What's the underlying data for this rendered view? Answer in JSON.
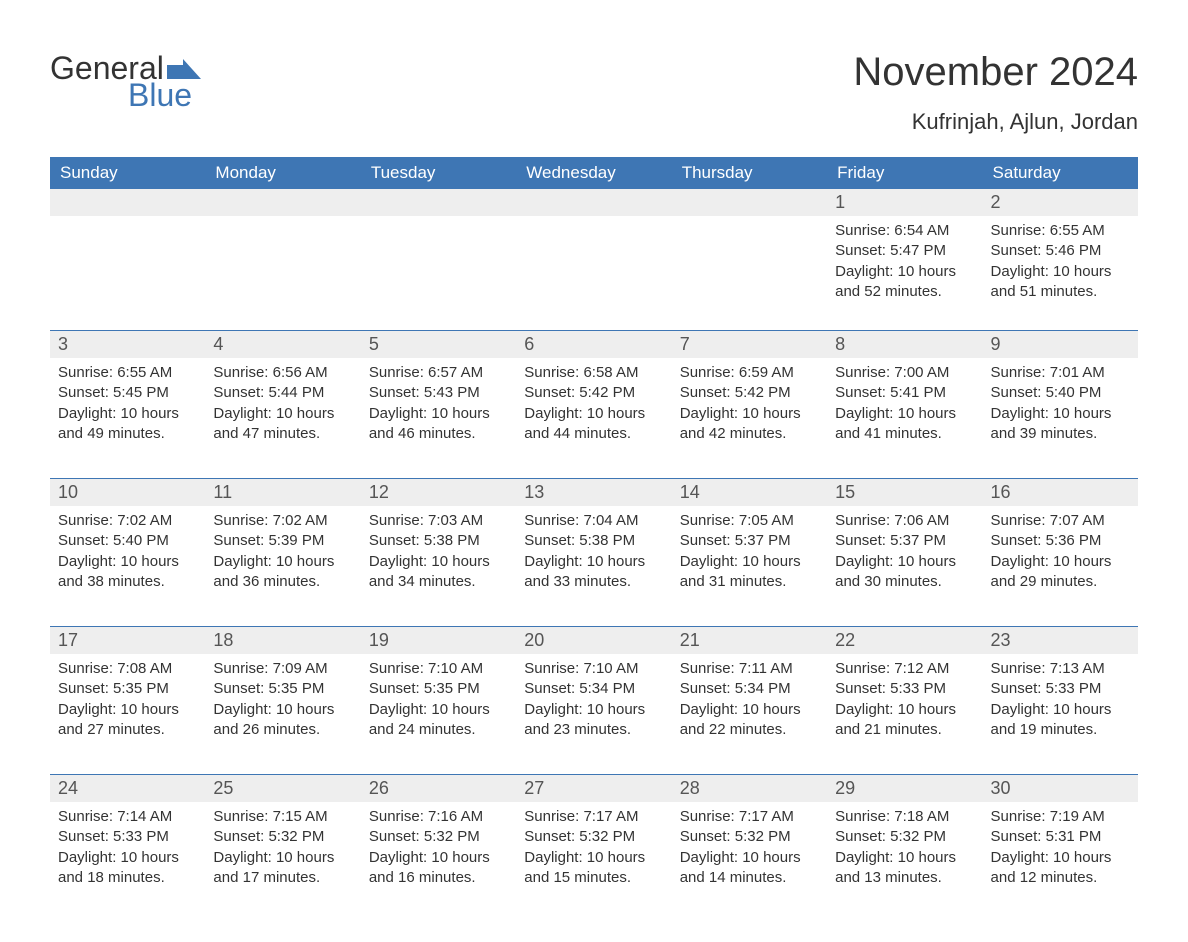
{
  "brand": {
    "word1": "General",
    "word2": "Blue"
  },
  "title": "November 2024",
  "location": "Kufrinjah, Ajlun, Jordan",
  "colors": {
    "header_bg": "#3e76b4",
    "header_text": "#ffffff",
    "daynum_bg": "#eeeeee",
    "text": "#333333",
    "brand_blue": "#3e76b4"
  },
  "weekdays": [
    "Sunday",
    "Monday",
    "Tuesday",
    "Wednesday",
    "Thursday",
    "Friday",
    "Saturday"
  ],
  "labels": {
    "sunrise": "Sunrise:",
    "sunset": "Sunset:",
    "daylight": "Daylight:"
  },
  "weeks": [
    [
      null,
      null,
      null,
      null,
      null,
      {
        "n": "1",
        "sunrise": "6:54 AM",
        "sunset": "5:47 PM",
        "daylight": "10 hours and 52 minutes."
      },
      {
        "n": "2",
        "sunrise": "6:55 AM",
        "sunset": "5:46 PM",
        "daylight": "10 hours and 51 minutes."
      }
    ],
    [
      {
        "n": "3",
        "sunrise": "6:55 AM",
        "sunset": "5:45 PM",
        "daylight": "10 hours and 49 minutes."
      },
      {
        "n": "4",
        "sunrise": "6:56 AM",
        "sunset": "5:44 PM",
        "daylight": "10 hours and 47 minutes."
      },
      {
        "n": "5",
        "sunrise": "6:57 AM",
        "sunset": "5:43 PM",
        "daylight": "10 hours and 46 minutes."
      },
      {
        "n": "6",
        "sunrise": "6:58 AM",
        "sunset": "5:42 PM",
        "daylight": "10 hours and 44 minutes."
      },
      {
        "n": "7",
        "sunrise": "6:59 AM",
        "sunset": "5:42 PM",
        "daylight": "10 hours and 42 minutes."
      },
      {
        "n": "8",
        "sunrise": "7:00 AM",
        "sunset": "5:41 PM",
        "daylight": "10 hours and 41 minutes."
      },
      {
        "n": "9",
        "sunrise": "7:01 AM",
        "sunset": "5:40 PM",
        "daylight": "10 hours and 39 minutes."
      }
    ],
    [
      {
        "n": "10",
        "sunrise": "7:02 AM",
        "sunset": "5:40 PM",
        "daylight": "10 hours and 38 minutes."
      },
      {
        "n": "11",
        "sunrise": "7:02 AM",
        "sunset": "5:39 PM",
        "daylight": "10 hours and 36 minutes."
      },
      {
        "n": "12",
        "sunrise": "7:03 AM",
        "sunset": "5:38 PM",
        "daylight": "10 hours and 34 minutes."
      },
      {
        "n": "13",
        "sunrise": "7:04 AM",
        "sunset": "5:38 PM",
        "daylight": "10 hours and 33 minutes."
      },
      {
        "n": "14",
        "sunrise": "7:05 AM",
        "sunset": "5:37 PM",
        "daylight": "10 hours and 31 minutes."
      },
      {
        "n": "15",
        "sunrise": "7:06 AM",
        "sunset": "5:37 PM",
        "daylight": "10 hours and 30 minutes."
      },
      {
        "n": "16",
        "sunrise": "7:07 AM",
        "sunset": "5:36 PM",
        "daylight": "10 hours and 29 minutes."
      }
    ],
    [
      {
        "n": "17",
        "sunrise": "7:08 AM",
        "sunset": "5:35 PM",
        "daylight": "10 hours and 27 minutes."
      },
      {
        "n": "18",
        "sunrise": "7:09 AM",
        "sunset": "5:35 PM",
        "daylight": "10 hours and 26 minutes."
      },
      {
        "n": "19",
        "sunrise": "7:10 AM",
        "sunset": "5:35 PM",
        "daylight": "10 hours and 24 minutes."
      },
      {
        "n": "20",
        "sunrise": "7:10 AM",
        "sunset": "5:34 PM",
        "daylight": "10 hours and 23 minutes."
      },
      {
        "n": "21",
        "sunrise": "7:11 AM",
        "sunset": "5:34 PM",
        "daylight": "10 hours and 22 minutes."
      },
      {
        "n": "22",
        "sunrise": "7:12 AM",
        "sunset": "5:33 PM",
        "daylight": "10 hours and 21 minutes."
      },
      {
        "n": "23",
        "sunrise": "7:13 AM",
        "sunset": "5:33 PM",
        "daylight": "10 hours and 19 minutes."
      }
    ],
    [
      {
        "n": "24",
        "sunrise": "7:14 AM",
        "sunset": "5:33 PM",
        "daylight": "10 hours and 18 minutes."
      },
      {
        "n": "25",
        "sunrise": "7:15 AM",
        "sunset": "5:32 PM",
        "daylight": "10 hours and 17 minutes."
      },
      {
        "n": "26",
        "sunrise": "7:16 AM",
        "sunset": "5:32 PM",
        "daylight": "10 hours and 16 minutes."
      },
      {
        "n": "27",
        "sunrise": "7:17 AM",
        "sunset": "5:32 PM",
        "daylight": "10 hours and 15 minutes."
      },
      {
        "n": "28",
        "sunrise": "7:17 AM",
        "sunset": "5:32 PM",
        "daylight": "10 hours and 14 minutes."
      },
      {
        "n": "29",
        "sunrise": "7:18 AM",
        "sunset": "5:32 PM",
        "daylight": "10 hours and 13 minutes."
      },
      {
        "n": "30",
        "sunrise": "7:19 AM",
        "sunset": "5:31 PM",
        "daylight": "10 hours and 12 minutes."
      }
    ]
  ]
}
